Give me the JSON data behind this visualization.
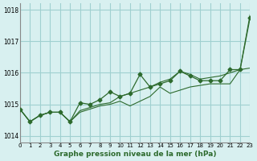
{
  "title": "Graphe pression niveau de la mer (hPa)",
  "xlabel": "Graphe pression niveau de la mer (hPa)",
  "bg_color": "#d8f0f0",
  "grid_color": "#a0d0d0",
  "line_color": "#2d6a2d",
  "xlim": [
    0,
    23
  ],
  "ylim": [
    1013.8,
    1018.2
  ],
  "yticks": [
    1014,
    1015,
    1016,
    1017,
    1018
  ],
  "xticks": [
    0,
    1,
    2,
    3,
    4,
    5,
    6,
    7,
    8,
    9,
    10,
    11,
    12,
    13,
    14,
    15,
    16,
    17,
    18,
    19,
    20,
    21,
    22,
    23
  ],
  "line1_x": [
    0,
    1,
    2,
    3,
    4,
    5,
    6,
    7,
    8,
    9,
    10,
    11,
    12,
    13,
    14,
    15,
    16,
    17,
    18,
    19,
    20,
    21,
    22,
    23
  ],
  "line1_y": [
    1014.85,
    1014.45,
    1014.65,
    1014.75,
    1014.75,
    1014.45,
    1014.75,
    1014.85,
    1014.95,
    1015.0,
    1015.1,
    1014.95,
    1015.1,
    1015.25,
    1015.55,
    1015.35,
    1015.45,
    1015.55,
    1015.6,
    1015.65,
    1015.65,
    1015.65,
    1016.1,
    1016.15
  ],
  "line2_x": [
    0,
    1,
    2,
    3,
    4,
    5,
    6,
    7,
    8,
    9,
    10,
    11,
    12,
    13,
    14,
    15,
    16,
    17,
    18,
    19,
    20,
    21,
    22,
    23
  ],
  "line2_y": [
    1014.85,
    1014.45,
    1014.65,
    1014.75,
    1014.75,
    1014.45,
    1015.05,
    1015.0,
    1015.15,
    1015.4,
    1015.25,
    1015.35,
    1015.95,
    1015.55,
    1015.65,
    1015.75,
    1016.05,
    1015.9,
    1015.75,
    1015.75,
    1015.75,
    1016.1,
    1016.1,
    1017.75
  ],
  "line3_x": [
    0,
    1,
    2,
    3,
    4,
    5,
    6,
    7,
    8,
    9,
    10,
    11,
    12,
    13,
    14,
    15,
    16,
    17,
    18,
    19,
    20,
    21,
    22,
    23
  ],
  "line3_y": [
    1014.85,
    1014.45,
    1014.65,
    1014.75,
    1014.75,
    1014.45,
    1014.8,
    1014.9,
    1015.0,
    1015.05,
    1015.25,
    1015.35,
    1015.45,
    1015.55,
    1015.7,
    1015.8,
    1016.05,
    1015.95,
    1015.8,
    1015.85,
    1015.9,
    1016.0,
    1016.1,
    1017.85
  ]
}
